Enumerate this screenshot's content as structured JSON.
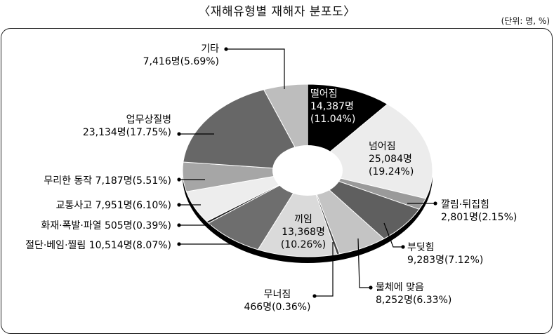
{
  "title": "〈재해유형별 재해자 분포도〉",
  "unit_note": "(단위: 명, %)",
  "chart_data": {
    "type": "pie",
    "title": "〈재해유형별 재해자 분포도〉",
    "unit": "(단위: 명, %)",
    "slices": [
      {
        "name": "떨어짐",
        "count": "14,387명",
        "percent": 11.04,
        "percent_label": "(11.04%)",
        "color": "#000000"
      },
      {
        "name": "넘어짐",
        "count": "25,084명",
        "percent": 19.24,
        "percent_label": "(19.24%)",
        "color": "#ececec"
      },
      {
        "name": "깔림·뒤집힘",
        "count": "2,801명",
        "percent": 2.15,
        "percent_label": "(2.15%)",
        "color": "#9a9a9a"
      },
      {
        "name": "부딪힘",
        "count": "9,283명",
        "percent": 7.12,
        "percent_label": "(7.12%)",
        "color": "#5f5f5f"
      },
      {
        "name": "물체에 맞음",
        "count": "8,252명",
        "percent": 6.33,
        "percent_label": "(6.33%)",
        "color": "#c4c4c4"
      },
      {
        "name": "무너짐",
        "count": "466명",
        "percent": 0.36,
        "percent_label": "(0.36%)",
        "color": "#444444"
      },
      {
        "name": "끼임",
        "count": "13,368명",
        "percent": 10.26,
        "percent_label": "(10.26%)",
        "color": "#dadada"
      },
      {
        "name": "절단·베임·찔림",
        "count": "10,514명",
        "percent": 8.07,
        "percent_label": "(8.07%)",
        "color": "#6e6e6e"
      },
      {
        "name": "화재·폭발·파열",
        "count": "505명",
        "percent": 0.39,
        "percent_label": "(0.39%)",
        "color": "#1a1a1a"
      },
      {
        "name": "교통사고",
        "count": "7,951명",
        "percent": 6.1,
        "percent_label": "(6.10%)",
        "color": "#ededed"
      },
      {
        "name": "무리한 동작",
        "count": "7,187명",
        "percent": 5.51,
        "percent_label": "(5.51%)",
        "color": "#a6a6a6"
      },
      {
        "name": "업무상질병",
        "count": "23,134명",
        "percent": 17.75,
        "percent_label": "(17.75%)",
        "color": "#676767"
      },
      {
        "name": "기타",
        "count": "7,416명",
        "percent": 5.69,
        "percent_label": "(5.69%)",
        "color": "#bdbdbd"
      }
    ]
  }
}
